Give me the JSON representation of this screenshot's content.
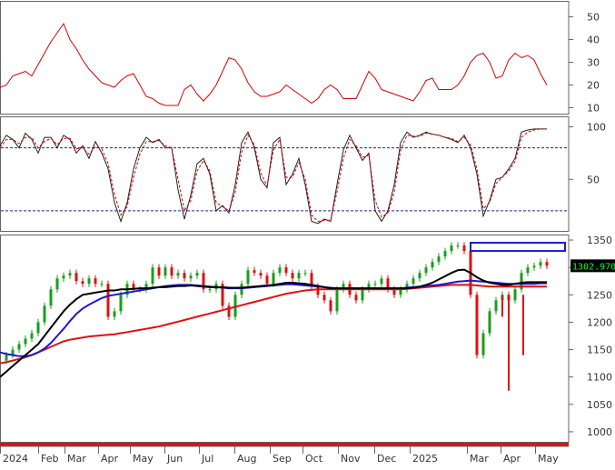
{
  "colors": {
    "background": "#ffffff",
    "frame": "#666666",
    "adx_line": "#d40000",
    "stoch_k": "#222222",
    "stoch_d": "#d40000",
    "stoch_levels": "#2222aa",
    "candle_up": "#1a9e1a",
    "candle_down": "#dd1111",
    "ma_short": "#000000",
    "ma_mid": "#1a1acc",
    "ma_long": "#dd1111",
    "highlight_box": "#1a1acc",
    "price_tag_bg": "#000000",
    "price_tag_text": "#00ff33",
    "date_bar": "#dd1111"
  },
  "price_tag": "1302.970",
  "chart_data": [
    {
      "type": "line",
      "panel": "indicator-top",
      "ylim": [
        7,
        57
      ],
      "yticks": [
        "10",
        "20",
        "30",
        "40",
        "50"
      ],
      "x": [
        0,
        7,
        14,
        21,
        28,
        35,
        42,
        49,
        56,
        63,
        70,
        77,
        84,
        91,
        98,
        105,
        112,
        119,
        126,
        133,
        140,
        147,
        154,
        161,
        168,
        175,
        182,
        189,
        196,
        203,
        210,
        217,
        224,
        231,
        238,
        245,
        252,
        259,
        266,
        273,
        280,
        287,
        294,
        301,
        308,
        315,
        322,
        329,
        336,
        343,
        350,
        357,
        364,
        371,
        378,
        385,
        392,
        399,
        406,
        413,
        420,
        427,
        434,
        441,
        448,
        455,
        462,
        469,
        476,
        483,
        490,
        497,
        504,
        511,
        518,
        525,
        532,
        539,
        546,
        553,
        560,
        567,
        574,
        581,
        588,
        595,
        602
      ],
      "values": [
        19,
        20,
        24,
        25,
        26,
        24,
        29,
        34,
        39,
        43,
        47,
        40,
        36,
        31,
        27,
        24,
        21,
        20,
        19,
        22,
        24,
        25,
        20,
        15,
        14,
        12,
        11,
        11,
        11,
        18,
        20,
        16,
        13,
        16,
        20,
        26,
        32,
        31,
        27,
        21,
        17,
        15,
        15,
        16,
        17,
        20,
        18,
        16,
        14,
        12,
        14,
        18,
        20,
        18,
        14,
        14,
        14,
        20,
        26,
        23,
        18,
        17,
        16,
        15,
        14,
        13,
        17,
        22,
        23,
        18,
        18,
        18,
        20,
        24,
        30,
        33,
        34,
        30,
        23,
        24,
        31,
        34,
        32,
        33,
        31,
        25,
        20
      ]
    },
    {
      "type": "line",
      "panel": "stochastic",
      "ylim": [
        0,
        110
      ],
      "yticks": [
        "50",
        "100"
      ],
      "levels": [
        20,
        80
      ],
      "x": [
        0,
        7,
        14,
        21,
        28,
        35,
        42,
        49,
        56,
        63,
        70,
        77,
        84,
        91,
        98,
        105,
        112,
        119,
        126,
        133,
        140,
        147,
        154,
        161,
        168,
        175,
        182,
        189,
        196,
        203,
        210,
        217,
        224,
        231,
        238,
        245,
        252,
        259,
        266,
        273,
        280,
        287,
        294,
        301,
        308,
        315,
        322,
        329,
        336,
        343,
        350,
        357,
        364,
        371,
        378,
        385,
        392,
        399,
        406,
        413,
        420,
        427,
        434,
        441,
        448,
        455,
        462,
        469,
        476,
        483,
        490,
        497,
        504,
        511,
        518,
        525,
        532,
        539,
        546,
        553,
        560,
        567,
        574,
        581,
        588,
        595,
        602
      ],
      "series": [
        {
          "values": [
            82,
            92,
            88,
            80,
            94,
            88,
            75,
            90,
            90,
            80,
            92,
            88,
            75,
            82,
            70,
            86,
            75,
            60,
            28,
            10,
            28,
            60,
            80,
            90,
            85,
            88,
            80,
            80,
            40,
            12,
            35,
            65,
            70,
            55,
            20,
            25,
            18,
            45,
            85,
            95,
            80,
            50,
            42,
            85,
            90,
            45,
            55,
            70,
            45,
            10,
            8,
            12,
            10,
            45,
            78,
            92,
            80,
            68,
            75,
            20,
            10,
            20,
            45,
            85,
            95,
            90,
            92,
            95,
            93,
            92,
            90,
            88,
            85,
            92,
            80,
            55,
            15,
            30,
            50,
            52,
            60,
            70,
            95,
            97,
            98,
            98,
            98
          ]
        },
        {
          "values": [
            80,
            88,
            88,
            84,
            90,
            90,
            80,
            86,
            89,
            83,
            89,
            89,
            79,
            80,
            74,
            81,
            79,
            65,
            36,
            16,
            24,
            52,
            74,
            86,
            86,
            87,
            82,
            80,
            50,
            20,
            30,
            58,
            68,
            58,
            28,
            24,
            20,
            38,
            76,
            92,
            83,
            56,
            44,
            78,
            88,
            52,
            52,
            66,
            50,
            16,
            10,
            11,
            11,
            38,
            70,
            88,
            82,
            71,
            73,
            30,
            14,
            18,
            38,
            78,
            92,
            91,
            91,
            94,
            93,
            92,
            90,
            89,
            86,
            90,
            83,
            60,
            22,
            28,
            46,
            52,
            58,
            67,
            90,
            95,
            97,
            98,
            98
          ]
        }
      ]
    },
    {
      "type": "line",
      "panel": "price",
      "ylim": [
        980,
        1360
      ],
      "yticks": [
        "1000",
        "1050",
        "1100",
        "1150",
        "1200",
        "1250",
        "1300",
        "1350"
      ],
      "x": [
        0,
        7,
        14,
        21,
        28,
        35,
        42,
        49,
        56,
        63,
        70,
        77,
        84,
        91,
        98,
        105,
        112,
        119,
        126,
        133,
        140,
        147,
        154,
        161,
        168,
        175,
        182,
        189,
        196,
        203,
        210,
        217,
        224,
        231,
        238,
        245,
        252,
        259,
        266,
        273,
        280,
        287,
        294,
        301,
        308,
        315,
        322,
        329,
        336,
        343,
        350,
        357,
        364,
        371,
        378,
        385,
        392,
        399,
        406,
        413,
        420,
        427,
        434,
        441,
        448,
        455,
        462,
        469,
        476,
        483,
        490,
        497,
        504,
        511,
        518,
        525,
        532,
        539,
        546,
        553,
        560,
        567,
        574,
        581,
        588,
        595,
        602
      ],
      "series": [
        {
          "name": "",
          "values": [
            1130,
            1140,
            1150,
            1160,
            1170,
            1180,
            1200,
            1230,
            1260,
            1280,
            1285,
            1290,
            1275,
            1270,
            1280,
            1270,
            1270,
            1210,
            1220,
            1250,
            1270,
            1260,
            1260,
            1270,
            1300,
            1285,
            1300,
            1285,
            1290,
            1280,
            1285,
            1290,
            1260,
            1260,
            1270,
            1230,
            1210,
            1250,
            1270,
            1295,
            1290,
            1285,
            1270,
            1290,
            1300,
            1290,
            1280,
            1290,
            1290,
            1265,
            1250,
            1240,
            1220,
            1260,
            1270,
            1250,
            1240,
            1260,
            1270,
            1270,
            1280,
            1260,
            1250,
            1260,
            1270,
            1280,
            1290,
            1300,
            1310,
            1320,
            1330,
            1340,
            1340,
            1330,
            1250,
            1140,
            1180,
            1220,
            1240,
            1250,
            1240,
            1260,
            1290,
            1300,
            1303,
            1310,
            1303
          ]
        },
        {
          "name": "",
          "values": [
            1100,
            1110,
            1120,
            1130,
            1140,
            1150,
            1160,
            1175,
            1190,
            1205,
            1220,
            1232,
            1242,
            1250,
            1252,
            1254,
            1256,
            1258,
            1258,
            1260,
            1260,
            1261,
            1262,
            1262,
            1263,
            1264,
            1264,
            1265,
            1266,
            1266,
            1267,
            1266,
            1265,
            1264,
            1264,
            1264,
            1263,
            1263,
            1263,
            1264,
            1265,
            1266,
            1267,
            1268,
            1270,
            1272,
            1272,
            1271,
            1270,
            1268,
            1266,
            1264,
            1262,
            1262,
            1262,
            1262,
            1262,
            1262,
            1262,
            1262,
            1262,
            1262,
            1262,
            1262,
            1262,
            1263,
            1265,
            1268,
            1272,
            1278,
            1284,
            1290,
            1295,
            1296,
            1290,
            1282,
            1276,
            1272,
            1270,
            1268,
            1268,
            1270,
            1272,
            1273,
            1273,
            1273,
            1273
          ]
        },
        {
          "name": "",
          "values": [
            1145,
            1142,
            1140,
            1138,
            1138,
            1140,
            1145,
            1152,
            1162,
            1175,
            1188,
            1202,
            1215,
            1225,
            1232,
            1238,
            1244,
            1248,
            1250,
            1252,
            1254,
            1256,
            1258,
            1260,
            1262,
            1264,
            1266,
            1267,
            1268,
            1268,
            1268,
            1267,
            1266,
            1265,
            1264,
            1263,
            1262,
            1262,
            1262,
            1263,
            1264,
            1265,
            1266,
            1267,
            1268,
            1269,
            1269,
            1268,
            1267,
            1266,
            1265,
            1264,
            1263,
            1262,
            1262,
            1262,
            1262,
            1262,
            1262,
            1262,
            1262,
            1262,
            1262,
            1262,
            1263,
            1264,
            1265,
            1266,
            1267,
            1268,
            1270,
            1272,
            1274,
            1275,
            1276,
            1275,
            1274,
            1273,
            1272,
            1271,
            1270,
            1270,
            1270,
            1270,
            1270,
            1271,
            1271
          ]
        },
        {
          "name": "",
          "values": [
            1125,
            1127,
            1130,
            1133,
            1136,
            1140,
            1145,
            1150,
            1155,
            1160,
            1165,
            1168,
            1170,
            1172,
            1174,
            1175,
            1176,
            1177,
            1178,
            1180,
            1182,
            1184,
            1186,
            1188,
            1190,
            1192,
            1195,
            1198,
            1201,
            1204,
            1207,
            1210,
            1213,
            1216,
            1219,
            1222,
            1225,
            1228,
            1231,
            1234,
            1237,
            1240,
            1243,
            1246,
            1249,
            1252,
            1254,
            1256,
            1258,
            1259,
            1260,
            1260,
            1260,
            1260,
            1260,
            1260,
            1260,
            1260,
            1260,
            1260,
            1260,
            1260,
            1260,
            1260,
            1261,
            1262,
            1263,
            1264,
            1265,
            1266,
            1267,
            1268,
            1268,
            1268,
            1268,
            1267,
            1266,
            1265,
            1265,
            1265,
            1265,
            1265,
            1265,
            1265,
            1265,
            1265,
            1265
          ]
        }
      ],
      "spikes": [
        {
          "x": 560,
          "low": 1075
        },
        {
          "x": 576,
          "low": 1140
        },
        {
          "x": 553,
          "low": 1210
        }
      ],
      "highlight": {
        "x0": 518,
        "x1": 622,
        "y0": 1330,
        "y1": 1345
      }
    }
  ],
  "x_axis": {
    "labels": [
      "2024",
      "Feb",
      "Mar",
      "Apr",
      "May",
      "Jun",
      "Jul",
      "Aug",
      "Sep",
      "Oct",
      "Nov",
      "Dec",
      "2025",
      "Mar",
      "Apr",
      "May"
    ],
    "positions": [
      0,
      42,
      71,
      108,
      143,
      181,
      219,
      258,
      297,
      333,
      372,
      412,
      451,
      514,
      551,
      589
    ]
  }
}
